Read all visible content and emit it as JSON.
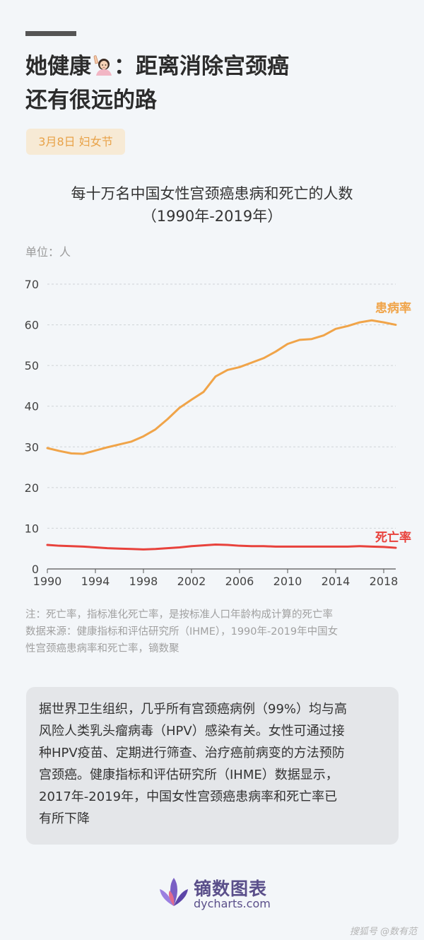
{
  "header": {
    "title_line1": "她健康",
    "title_line1_suffix": "：距离消除宫颈癌",
    "title_line2": "还有很远的路",
    "tag": "3月8日 妇女节"
  },
  "chart_data": {
    "type": "line",
    "title_line1": "每十万名中国女性宫颈癌患病和死亡的人数",
    "title_line2": "（1990年-2019年）",
    "unit": "单位：人",
    "x": [
      1990,
      1991,
      1992,
      1993,
      1994,
      1995,
      1996,
      1997,
      1998,
      1999,
      2000,
      2001,
      2002,
      2003,
      2004,
      2005,
      2006,
      2007,
      2008,
      2009,
      2010,
      2011,
      2012,
      2013,
      2014,
      2015,
      2016,
      2017,
      2018,
      2019
    ],
    "xticks": [
      "1990",
      "1994",
      "1998",
      "2002",
      "2006",
      "2010",
      "2014",
      "2018"
    ],
    "yticks": [
      "0",
      "10",
      "20",
      "30",
      "40",
      "50",
      "60",
      "70"
    ],
    "ylim": [
      0,
      70
    ],
    "xlim": [
      1990,
      2019
    ],
    "grid": true,
    "series": [
      {
        "name": "患病率",
        "color": "#f0a449",
        "values": [
          29.7,
          29.0,
          28.4,
          28.3,
          29.1,
          29.9,
          30.6,
          31.3,
          32.6,
          34.3,
          36.8,
          39.6,
          41.6,
          43.5,
          47.3,
          48.9,
          49.6,
          50.7,
          51.8,
          53.4,
          55.3,
          56.3,
          56.5,
          57.4,
          59.0,
          59.7,
          60.6,
          61.1,
          60.6,
          60.0
        ]
      },
      {
        "name": "死亡率",
        "color": "#e8423c",
        "values": [
          5.9,
          5.7,
          5.6,
          5.5,
          5.3,
          5.1,
          5.0,
          4.9,
          4.8,
          4.9,
          5.1,
          5.3,
          5.6,
          5.8,
          6.0,
          5.9,
          5.7,
          5.6,
          5.6,
          5.5,
          5.5,
          5.5,
          5.5,
          5.5,
          5.5,
          5.5,
          5.6,
          5.5,
          5.4,
          5.2
        ]
      }
    ]
  },
  "notes": {
    "line1": "注：死亡率，指标准化死亡率，是按标准人口年龄构成计算的死亡率",
    "line2": "数据来源：健康指标和评估研究所（IHME），1990年-2019年中国女",
    "line3": "性宫颈癌患病率和死亡率，镝数聚"
  },
  "summary": {
    "lines": [
      "据世界卫生组织，几乎所有宫颈癌病例（99%）均与高",
      "风险人类乳头瘤病毒（HPV）感染有关。女性可通过接",
      "种HPV疫苗、定期进行筛查、治疗癌前病变的方法预防",
      "宫颈癌。健康指标和评估研究所（IHME）数据显示，",
      "2017年-2019年，中国女性宫颈癌患病率和死亡率已",
      "有所下降"
    ]
  },
  "brand": {
    "name": "镝数图表",
    "url": "dycharts.com"
  },
  "footer": {
    "credit": "搜狐号 @数有范"
  }
}
